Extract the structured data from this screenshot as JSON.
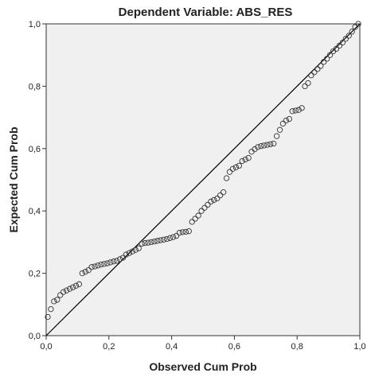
{
  "chart_data": {
    "type": "scatter",
    "title": "Dependent Variable: ABS_RES",
    "xlabel": "Observed Cum Prob",
    "ylabel": "Expected Cum Prob",
    "xlim": [
      0,
      1
    ],
    "ylim": [
      0,
      1
    ],
    "x_ticks": [
      "0,0",
      "0,2",
      "0,4",
      "0,6",
      "0,8",
      "1,0"
    ],
    "y_ticks": [
      "0,0",
      "0,2",
      "0,4",
      "0,6",
      "0,8",
      "1,0"
    ],
    "tick_values": [
      0,
      0.2,
      0.4,
      0.6,
      0.8,
      1.0
    ],
    "grid": false,
    "plot_background": "#f0f0f0",
    "marker": "open-circle",
    "reference_line": {
      "from": [
        0,
        0
      ],
      "to": [
        1,
        1
      ]
    },
    "points": [
      [
        0.005,
        0.06
      ],
      [
        0.015,
        0.085
      ],
      [
        0.025,
        0.11
      ],
      [
        0.035,
        0.115
      ],
      [
        0.045,
        0.13
      ],
      [
        0.055,
        0.14
      ],
      [
        0.065,
        0.145
      ],
      [
        0.075,
        0.15
      ],
      [
        0.085,
        0.155
      ],
      [
        0.095,
        0.16
      ],
      [
        0.105,
        0.165
      ],
      [
        0.115,
        0.2
      ],
      [
        0.125,
        0.205
      ],
      [
        0.135,
        0.21
      ],
      [
        0.145,
        0.22
      ],
      [
        0.155,
        0.222
      ],
      [
        0.165,
        0.225
      ],
      [
        0.175,
        0.228
      ],
      [
        0.185,
        0.23
      ],
      [
        0.195,
        0.232
      ],
      [
        0.205,
        0.235
      ],
      [
        0.215,
        0.238
      ],
      [
        0.225,
        0.24
      ],
      [
        0.235,
        0.245
      ],
      [
        0.245,
        0.25
      ],
      [
        0.255,
        0.26
      ],
      [
        0.265,
        0.265
      ],
      [
        0.275,
        0.27
      ],
      [
        0.285,
        0.275
      ],
      [
        0.295,
        0.28
      ],
      [
        0.305,
        0.295
      ],
      [
        0.315,
        0.297
      ],
      [
        0.325,
        0.298
      ],
      [
        0.335,
        0.3
      ],
      [
        0.345,
        0.302
      ],
      [
        0.355,
        0.304
      ],
      [
        0.365,
        0.306
      ],
      [
        0.375,
        0.308
      ],
      [
        0.385,
        0.31
      ],
      [
        0.395,
        0.313
      ],
      [
        0.405,
        0.316
      ],
      [
        0.415,
        0.32
      ],
      [
        0.425,
        0.33
      ],
      [
        0.435,
        0.332
      ],
      [
        0.445,
        0.333
      ],
      [
        0.455,
        0.335
      ],
      [
        0.465,
        0.365
      ],
      [
        0.475,
        0.375
      ],
      [
        0.485,
        0.385
      ],
      [
        0.495,
        0.4
      ],
      [
        0.505,
        0.41
      ],
      [
        0.515,
        0.42
      ],
      [
        0.525,
        0.43
      ],
      [
        0.535,
        0.435
      ],
      [
        0.545,
        0.44
      ],
      [
        0.555,
        0.45
      ],
      [
        0.565,
        0.46
      ],
      [
        0.575,
        0.505
      ],
      [
        0.585,
        0.525
      ],
      [
        0.595,
        0.535
      ],
      [
        0.605,
        0.54
      ],
      [
        0.615,
        0.545
      ],
      [
        0.625,
        0.56
      ],
      [
        0.635,
        0.565
      ],
      [
        0.645,
        0.57
      ],
      [
        0.655,
        0.59
      ],
      [
        0.665,
        0.598
      ],
      [
        0.675,
        0.605
      ],
      [
        0.685,
        0.608
      ],
      [
        0.695,
        0.61
      ],
      [
        0.705,
        0.612
      ],
      [
        0.715,
        0.614
      ],
      [
        0.725,
        0.616
      ],
      [
        0.735,
        0.64
      ],
      [
        0.745,
        0.66
      ],
      [
        0.755,
        0.68
      ],
      [
        0.765,
        0.69
      ],
      [
        0.775,
        0.695
      ],
      [
        0.785,
        0.72
      ],
      [
        0.795,
        0.722
      ],
      [
        0.805,
        0.724
      ],
      [
        0.815,
        0.73
      ],
      [
        0.825,
        0.8
      ],
      [
        0.835,
        0.81
      ],
      [
        0.845,
        0.835
      ],
      [
        0.855,
        0.845
      ],
      [
        0.865,
        0.855
      ],
      [
        0.875,
        0.865
      ],
      [
        0.885,
        0.878
      ],
      [
        0.895,
        0.888
      ],
      [
        0.905,
        0.9
      ],
      [
        0.915,
        0.912
      ],
      [
        0.925,
        0.92
      ],
      [
        0.935,
        0.93
      ],
      [
        0.945,
        0.94
      ],
      [
        0.955,
        0.952
      ],
      [
        0.965,
        0.962
      ],
      [
        0.975,
        0.975
      ],
      [
        0.985,
        0.99
      ],
      [
        0.995,
        1.0
      ]
    ]
  }
}
